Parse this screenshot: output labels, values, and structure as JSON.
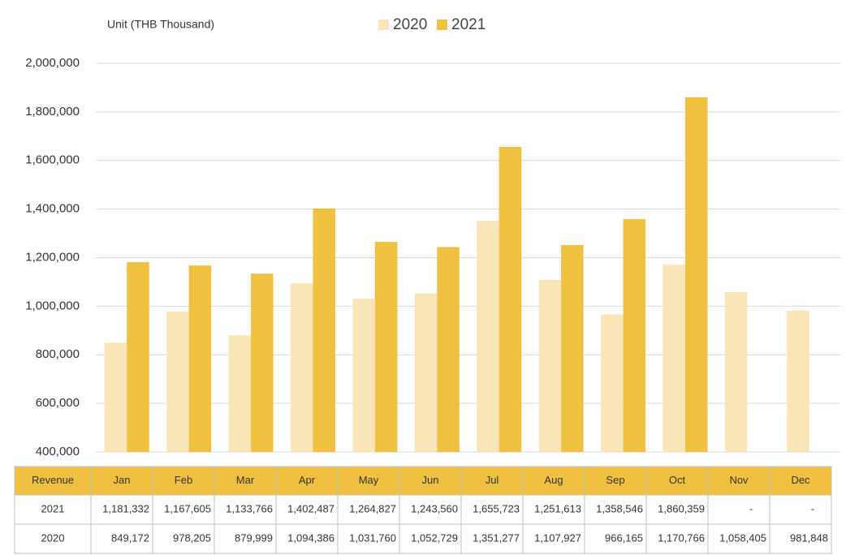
{
  "chart_data": {
    "type": "bar",
    "title": "Unit (THB  Thousand)",
    "categories": [
      "Jan",
      "Feb",
      "Mar",
      "Apr",
      "May",
      "Jun",
      "Jul",
      "Aug",
      "Sep",
      "Oct",
      "Nov",
      "Dec"
    ],
    "series": [
      {
        "name": "2020",
        "color": "#f9e5b8",
        "values": [
          849172,
          978205,
          879999,
          1094386,
          1031760,
          1052729,
          1351277,
          1107927,
          966165,
          1170766,
          1058405,
          981848
        ],
        "value_labels": [
          "849,172",
          "978,205",
          "879,999",
          "1,094,386",
          "1,031,760",
          "1,052,729",
          "1,351,277",
          "1,107,927",
          "966,165",
          "1,170,766",
          "1,058,405",
          "981,848"
        ]
      },
      {
        "name": "2021",
        "color": "#f0c040",
        "values": [
          1181332,
          1167605,
          1133766,
          1402487,
          1264827,
          1243560,
          1655723,
          1251613,
          1358546,
          1860359,
          null,
          null
        ],
        "value_labels": [
          "1,181,332",
          "1,167,605",
          "1,133,766",
          "1,402,487",
          "1,264,827",
          "1,243,560",
          "1,655,723",
          "1,251,613",
          "1,358,546",
          "1,860,359",
          "-",
          "-"
        ]
      }
    ],
    "ylim": [
      400000,
      2000000
    ],
    "yticks": [
      {
        "value": 400000,
        "label": "400,000"
      },
      {
        "value": 600000,
        "label": "600,000"
      },
      {
        "value": 800000,
        "label": "800,000"
      },
      {
        "value": 1000000,
        "label": "1,000,000"
      },
      {
        "value": 1200000,
        "label": "1,200,000"
      },
      {
        "value": 1400000,
        "label": "1,400,000"
      },
      {
        "value": 1600000,
        "label": "1,600,000"
      },
      {
        "value": 1800000,
        "label": "1,800,000"
      },
      {
        "value": 2000000,
        "label": "2,000,000"
      }
    ],
    "grid": true,
    "table_header": "Revenue"
  }
}
